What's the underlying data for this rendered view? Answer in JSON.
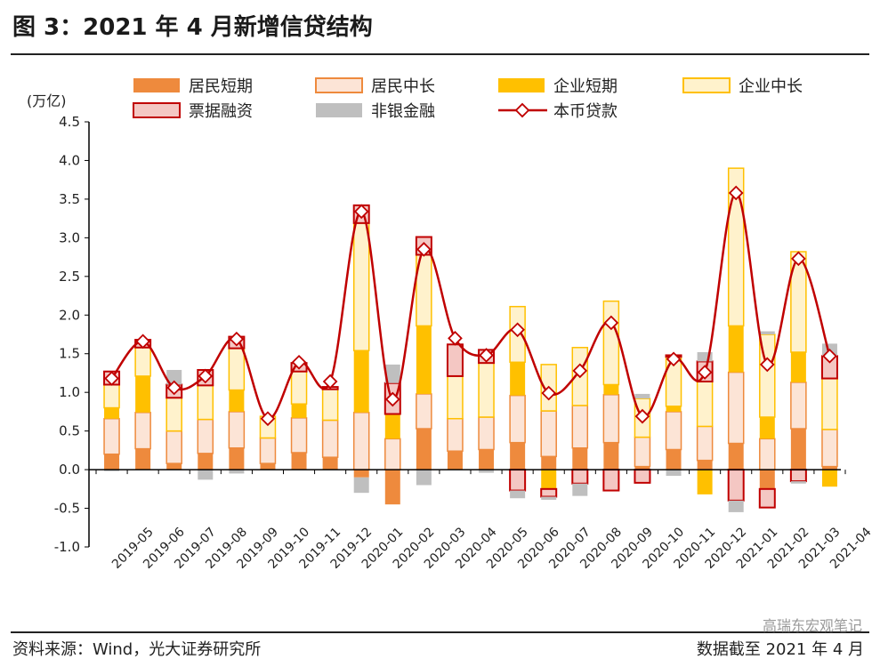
{
  "title": "图 3：2021 年 4 月新增信贷结构",
  "source": "资料来源：Wind，光大证券研究所",
  "cutoff": "数据截至 2021 年 4 月",
  "watermark": "高瑞东宏观笔记",
  "colors": {
    "household_short": "#EE8A3D",
    "household_long": "#FCE4D6",
    "corporate_short": "#FFC000",
    "corporate_long": "#FFF2CC",
    "bill_financing": "#F4C7C3",
    "nonbank": "#BFBFBF",
    "rmb_loans": "#C00000"
  },
  "chart_data": {
    "type": "bar",
    "stacked": true,
    "title": "2021 年 4 月新增信贷结构",
    "ylabel": "(万亿)",
    "ylim": [
      -1.0,
      4.5
    ],
    "yticks": [
      "4.5",
      "4.0",
      "3.5",
      "3.0",
      "2.5",
      "2.0",
      "1.5",
      "1.0",
      "0.5",
      "0.0",
      "-0.5",
      "-1.0"
    ],
    "categories": [
      "2019-05",
      "2019-06",
      "2019-07",
      "2019-08",
      "2019-09",
      "2019-10",
      "2019-11",
      "2019-12",
      "2020-01",
      "2020-02",
      "2020-03",
      "2020-04",
      "2020-05",
      "2020-06",
      "2020-07",
      "2020-08",
      "2020-09",
      "2020-10",
      "2020-11",
      "2020-12",
      "2021-01",
      "2021-02",
      "2021-03",
      "2021-04"
    ],
    "legend": [
      "居民短期",
      "居民中长",
      "企业短期",
      "企业中长",
      "票据融资",
      "非银金融",
      "本币贷款"
    ],
    "series": [
      {
        "name": "居民短期",
        "values": [
          0.2,
          0.27,
          0.08,
          0.21,
          0.28,
          0.08,
          0.22,
          0.16,
          -0.1,
          -0.45,
          0.53,
          0.24,
          0.26,
          0.35,
          0.17,
          0.28,
          0.35,
          0.04,
          0.26,
          0.12,
          0.34,
          -0.25,
          0.53,
          0.04
        ]
      },
      {
        "name": "居民中长",
        "values": [
          0.46,
          0.47,
          0.42,
          0.44,
          0.47,
          0.33,
          0.45,
          0.48,
          0.74,
          0.4,
          0.45,
          0.42,
          0.42,
          0.61,
          0.59,
          0.55,
          0.62,
          0.38,
          0.49,
          0.44,
          0.92,
          0.4,
          0.6,
          0.48
        ]
      },
      {
        "name": "企业短期",
        "values": [
          0.14,
          0.47,
          0.0,
          0.0,
          0.28,
          0.0,
          0.18,
          0.0,
          0.8,
          0.32,
          0.88,
          0.0,
          0.0,
          0.43,
          -0.25,
          0.0,
          0.13,
          0.0,
          0.07,
          -0.32,
          0.6,
          0.28,
          0.39,
          -0.22
        ]
      },
      {
        "name": "企业中长",
        "values": [
          0.3,
          0.37,
          0.43,
          0.44,
          0.54,
          0.28,
          0.42,
          0.4,
          1.65,
          0.0,
          0.92,
          0.55,
          0.7,
          0.72,
          0.6,
          0.75,
          1.08,
          0.5,
          0.64,
          0.58,
          2.04,
          1.07,
          1.3,
          0.66
        ]
      },
      {
        "name": "票据融资",
        "values": [
          0.17,
          0.1,
          0.17,
          0.2,
          0.15,
          0.0,
          0.11,
          0.03,
          0.23,
          0.4,
          0.23,
          0.41,
          0.17,
          -0.27,
          -0.1,
          -0.18,
          -0.27,
          -0.17,
          0.02,
          0.26,
          -0.4,
          -0.24,
          -0.15,
          0.29
        ]
      },
      {
        "name": "非银金融",
        "values": [
          -0.02,
          0.0,
          0.19,
          -0.13,
          -0.05,
          0.0,
          0.0,
          0.0,
          -0.2,
          0.24,
          -0.2,
          0.0,
          -0.04,
          -0.1,
          -0.04,
          -0.16,
          0.0,
          0.06,
          -0.08,
          0.12,
          -0.15,
          0.04,
          -0.03,
          0.16
        ]
      },
      {
        "name": "本币贷款",
        "type": "line",
        "values": [
          1.18,
          1.66,
          1.06,
          1.21,
          1.69,
          0.66,
          1.39,
          1.14,
          3.34,
          0.91,
          2.85,
          1.7,
          1.48,
          1.81,
          0.99,
          1.28,
          1.9,
          0.69,
          1.43,
          1.26,
          3.58,
          1.36,
          2.73,
          1.47
        ]
      }
    ]
  }
}
